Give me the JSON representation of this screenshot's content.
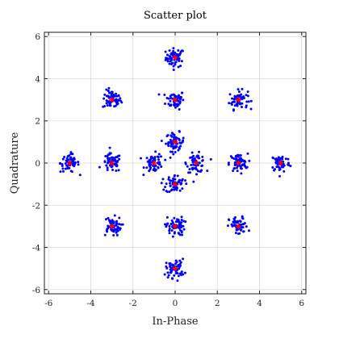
{
  "chart_data": {
    "type": "scatter",
    "title": "Scatter plot",
    "xlabel": "In-Phase",
    "ylabel": "Quadrature",
    "xlim": [
      -6.2,
      6.2
    ],
    "ylim": [
      -6.2,
      6.2
    ],
    "xticks": [
      -6,
      -4,
      -2,
      0,
      2,
      4,
      6
    ],
    "yticks": [
      -6,
      -4,
      -2,
      0,
      2,
      4,
      6
    ],
    "grid": true,
    "received_color": "#0000ff",
    "reference_color": "#ff0000",
    "reference_points": [
      [
        0,
        5
      ],
      [
        -3,
        3
      ],
      [
        0,
        3
      ],
      [
        3,
        3
      ],
      [
        0,
        1
      ],
      [
        -5,
        0
      ],
      [
        -3,
        0
      ],
      [
        -1,
        0
      ],
      [
        1,
        0
      ],
      [
        3,
        0
      ],
      [
        5,
        0
      ],
      [
        0,
        -1
      ],
      [
        -3,
        -3
      ],
      [
        0,
        -3
      ],
      [
        3,
        -3
      ],
      [
        0,
        -5
      ]
    ]
  }
}
